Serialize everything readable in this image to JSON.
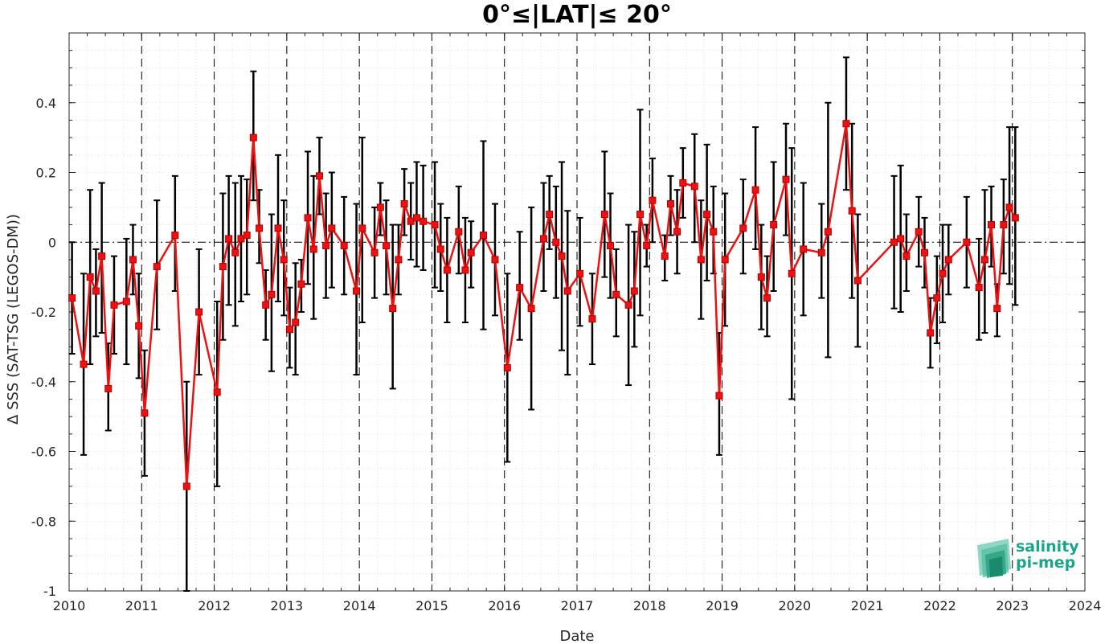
{
  "chart_data": {
    "type": "line",
    "title": "0°≤|LAT|≤ 20°",
    "xlabel": "Date",
    "ylabel": "Δ SSS (SAT-TSG (LEGOS-DM))",
    "xlim": [
      2010,
      2024
    ],
    "ylim": [
      -1,
      0.6
    ],
    "xticks": [
      "2010",
      "2011",
      "2012",
      "2013",
      "2014",
      "2015",
      "2016",
      "2017",
      "2018",
      "2019",
      "2020",
      "2021",
      "2022",
      "2023",
      "2024"
    ],
    "yticks": [
      "-1",
      "-0.8",
      "-0.6",
      "-0.4",
      "-0.2",
      "0",
      "0.2",
      "0.4"
    ],
    "grid": true,
    "series": [
      {
        "color": "#ee1111",
        "errorbar_color": "#000000",
        "points": [
          {
            "x": 2010.04,
            "y": -0.16,
            "lo": -0.32,
            "hi": 0.0
          },
          {
            "x": 2010.2,
            "y": -0.35,
            "lo": -0.61,
            "hi": -0.09
          },
          {
            "x": 2010.29,
            "y": -0.1,
            "lo": -0.35,
            "hi": 0.15
          },
          {
            "x": 2010.37,
            "y": -0.14,
            "lo": -0.27,
            "hi": -0.02
          },
          {
            "x": 2010.45,
            "y": -0.04,
            "lo": -0.26,
            "hi": 0.17
          },
          {
            "x": 2010.54,
            "y": -0.42,
            "lo": -0.54,
            "hi": -0.29
          },
          {
            "x": 2010.62,
            "y": -0.18,
            "lo": -0.32,
            "hi": -0.04
          },
          {
            "x": 2010.79,
            "y": -0.17,
            "lo": -0.35,
            "hi": 0.01
          },
          {
            "x": 2010.88,
            "y": -0.05,
            "lo": -0.15,
            "hi": 0.05
          },
          {
            "x": 2010.96,
            "y": -0.24,
            "lo": -0.39,
            "hi": -0.09
          },
          {
            "x": 2011.04,
            "y": -0.49,
            "lo": -0.67,
            "hi": -0.31
          },
          {
            "x": 2011.21,
            "y": -0.07,
            "lo": -0.25,
            "hi": 0.12
          },
          {
            "x": 2011.46,
            "y": 0.02,
            "lo": -0.14,
            "hi": 0.19
          },
          {
            "x": 2011.62,
            "y": -0.7,
            "lo": -1.0,
            "hi": -0.4
          },
          {
            "x": 2011.79,
            "y": -0.2,
            "lo": -0.38,
            "hi": -0.02
          },
          {
            "x": 2012.04,
            "y": -0.43,
            "lo": -0.7,
            "hi": -0.17
          },
          {
            "x": 2012.12,
            "y": -0.07,
            "lo": -0.28,
            "hi": 0.14
          },
          {
            "x": 2012.2,
            "y": 0.01,
            "lo": -0.18,
            "hi": 0.19
          },
          {
            "x": 2012.29,
            "y": -0.03,
            "lo": -0.24,
            "hi": 0.17
          },
          {
            "x": 2012.37,
            "y": 0.01,
            "lo": -0.17,
            "hi": 0.19
          },
          {
            "x": 2012.45,
            "y": 0.02,
            "lo": -0.15,
            "hi": 0.18
          },
          {
            "x": 2012.54,
            "y": 0.3,
            "lo": 0.12,
            "hi": 0.49
          },
          {
            "x": 2012.62,
            "y": 0.04,
            "lo": -0.06,
            "hi": 0.15
          },
          {
            "x": 2012.71,
            "y": -0.18,
            "lo": -0.28,
            "hi": -0.08
          },
          {
            "x": 2012.79,
            "y": -0.15,
            "lo": -0.37,
            "hi": 0.08
          },
          {
            "x": 2012.88,
            "y": 0.04,
            "lo": -0.17,
            "hi": 0.25
          },
          {
            "x": 2012.96,
            "y": -0.05,
            "lo": -0.21,
            "hi": 0.12
          },
          {
            "x": 2013.04,
            "y": -0.25,
            "lo": -0.36,
            "hi": -0.13
          },
          {
            "x": 2013.12,
            "y": -0.23,
            "lo": -0.38,
            "hi": -0.06
          },
          {
            "x": 2013.2,
            "y": -0.12,
            "lo": -0.2,
            "hi": -0.05
          },
          {
            "x": 2013.29,
            "y": 0.07,
            "lo": -0.12,
            "hi": 0.26
          },
          {
            "x": 2013.37,
            "y": -0.02,
            "lo": -0.22,
            "hi": 0.19
          },
          {
            "x": 2013.45,
            "y": 0.19,
            "lo": 0.08,
            "hi": 0.3
          },
          {
            "x": 2013.54,
            "y": -0.01,
            "lo": -0.16,
            "hi": 0.14
          },
          {
            "x": 2013.62,
            "y": 0.04,
            "lo": -0.13,
            "hi": 0.2
          },
          {
            "x": 2013.79,
            "y": -0.01,
            "lo": -0.15,
            "hi": 0.13
          },
          {
            "x": 2013.96,
            "y": -0.14,
            "lo": -0.38,
            "hi": 0.11
          },
          {
            "x": 2014.04,
            "y": 0.04,
            "lo": -0.23,
            "hi": 0.3
          },
          {
            "x": 2014.21,
            "y": -0.03,
            "lo": -0.16,
            "hi": 0.1
          },
          {
            "x": 2014.29,
            "y": 0.1,
            "lo": 0.02,
            "hi": 0.17
          },
          {
            "x": 2014.37,
            "y": -0.01,
            "lo": -0.15,
            "hi": 0.12
          },
          {
            "x": 2014.46,
            "y": -0.19,
            "lo": -0.42,
            "hi": 0.05
          },
          {
            "x": 2014.54,
            "y": -0.05,
            "lo": -0.15,
            "hi": 0.05
          },
          {
            "x": 2014.62,
            "y": 0.11,
            "lo": 0.02,
            "hi": 0.21
          },
          {
            "x": 2014.71,
            "y": 0.06,
            "lo": -0.05,
            "hi": 0.17
          },
          {
            "x": 2014.79,
            "y": 0.07,
            "lo": -0.07,
            "hi": 0.23
          },
          {
            "x": 2014.88,
            "y": 0.06,
            "lo": -0.08,
            "hi": 0.22
          },
          {
            "x": 2015.04,
            "y": 0.05,
            "lo": -0.13,
            "hi": 0.23
          },
          {
            "x": 2015.12,
            "y": -0.02,
            "lo": -0.14,
            "hi": 0.11
          },
          {
            "x": 2015.21,
            "y": -0.08,
            "lo": -0.23,
            "hi": 0.07
          },
          {
            "x": 2015.37,
            "y": 0.03,
            "lo": -0.09,
            "hi": 0.16
          },
          {
            "x": 2015.46,
            "y": -0.08,
            "lo": -0.23,
            "hi": 0.07
          },
          {
            "x": 2015.54,
            "y": -0.03,
            "lo": -0.13,
            "hi": 0.06
          },
          {
            "x": 2015.71,
            "y": 0.02,
            "lo": -0.25,
            "hi": 0.29
          },
          {
            "x": 2015.87,
            "y": -0.05,
            "lo": -0.21,
            "hi": 0.11
          },
          {
            "x": 2016.04,
            "y": -0.36,
            "lo": -0.63,
            "hi": -0.09
          },
          {
            "x": 2016.21,
            "y": -0.13,
            "lo": -0.28,
            "hi": 0.03
          },
          {
            "x": 2016.37,
            "y": -0.19,
            "lo": -0.48,
            "hi": 0.1
          },
          {
            "x": 2016.54,
            "y": 0.01,
            "lo": -0.14,
            "hi": 0.17
          },
          {
            "x": 2016.62,
            "y": 0.08,
            "lo": -0.02,
            "hi": 0.19
          },
          {
            "x": 2016.71,
            "y": 0.0,
            "lo": -0.16,
            "hi": 0.16
          },
          {
            "x": 2016.79,
            "y": -0.04,
            "lo": -0.31,
            "hi": 0.23
          },
          {
            "x": 2016.87,
            "y": -0.14,
            "lo": -0.38,
            "hi": 0.09
          },
          {
            "x": 2017.04,
            "y": -0.09,
            "lo": -0.24,
            "hi": 0.07
          },
          {
            "x": 2017.21,
            "y": -0.22,
            "lo": -0.35,
            "hi": -0.09
          },
          {
            "x": 2017.38,
            "y": 0.08,
            "lo": -0.1,
            "hi": 0.26
          },
          {
            "x": 2017.46,
            "y": -0.01,
            "lo": -0.16,
            "hi": 0.14
          },
          {
            "x": 2017.54,
            "y": -0.15,
            "lo": -0.27,
            "hi": -0.02
          },
          {
            "x": 2017.71,
            "y": -0.18,
            "lo": -0.41,
            "hi": 0.05
          },
          {
            "x": 2017.79,
            "y": -0.14,
            "lo": -0.3,
            "hi": 0.03
          },
          {
            "x": 2017.87,
            "y": 0.08,
            "lo": -0.21,
            "hi": 0.38
          },
          {
            "x": 2017.96,
            "y": -0.01,
            "lo": -0.07,
            "hi": 0.05
          },
          {
            "x": 2018.04,
            "y": 0.12,
            "lo": 0.0,
            "hi": 0.24
          },
          {
            "x": 2018.21,
            "y": -0.04,
            "lo": -0.11,
            "hi": 0.02
          },
          {
            "x": 2018.29,
            "y": 0.11,
            "lo": 0.02,
            "hi": 0.19
          },
          {
            "x": 2018.38,
            "y": 0.03,
            "lo": -0.09,
            "hi": 0.15
          },
          {
            "x": 2018.46,
            "y": 0.17,
            "lo": 0.07,
            "hi": 0.27
          },
          {
            "x": 2018.62,
            "y": 0.16,
            "lo": 0.0,
            "hi": 0.31
          },
          {
            "x": 2018.71,
            "y": -0.05,
            "lo": -0.22,
            "hi": 0.12
          },
          {
            "x": 2018.79,
            "y": 0.08,
            "lo": -0.11,
            "hi": 0.28
          },
          {
            "x": 2018.88,
            "y": 0.03,
            "lo": -0.09,
            "hi": 0.16
          },
          {
            "x": 2018.96,
            "y": -0.44,
            "lo": -0.61,
            "hi": -0.26
          },
          {
            "x": 2019.04,
            "y": -0.05,
            "lo": -0.24,
            "hi": 0.14
          },
          {
            "x": 2019.29,
            "y": 0.04,
            "lo": -0.09,
            "hi": 0.18
          },
          {
            "x": 2019.46,
            "y": 0.15,
            "lo": -0.02,
            "hi": 0.33
          },
          {
            "x": 2019.54,
            "y": -0.1,
            "lo": -0.25,
            "hi": 0.05
          },
          {
            "x": 2019.62,
            "y": -0.16,
            "lo": -0.27,
            "hi": -0.04
          },
          {
            "x": 2019.71,
            "y": 0.05,
            "lo": -0.14,
            "hi": 0.23
          },
          {
            "x": 2019.88,
            "y": 0.18,
            "lo": 0.02,
            "hi": 0.34
          },
          {
            "x": 2019.96,
            "y": -0.09,
            "lo": -0.45,
            "hi": 0.27
          },
          {
            "x": 2020.12,
            "y": -0.02,
            "lo": -0.21,
            "hi": 0.17
          },
          {
            "x": 2020.37,
            "y": -0.03,
            "lo": -0.16,
            "hi": 0.11
          },
          {
            "x": 2020.46,
            "y": 0.03,
            "lo": -0.33,
            "hi": 0.4
          },
          {
            "x": 2020.71,
            "y": 0.34,
            "lo": 0.15,
            "hi": 0.53
          },
          {
            "x": 2020.79,
            "y": 0.09,
            "lo": -0.16,
            "hi": 0.34
          },
          {
            "x": 2020.87,
            "y": -0.11,
            "lo": -0.3,
            "hi": 0.08
          },
          {
            "x": 2021.37,
            "y": 0.0,
            "lo": -0.19,
            "hi": 0.19
          },
          {
            "x": 2021.46,
            "y": 0.01,
            "lo": -0.2,
            "hi": 0.22
          },
          {
            "x": 2021.54,
            "y": -0.04,
            "lo": -0.14,
            "hi": 0.08
          },
          {
            "x": 2021.71,
            "y": 0.03,
            "lo": -0.07,
            "hi": 0.13
          },
          {
            "x": 2021.79,
            "y": -0.03,
            "lo": -0.13,
            "hi": 0.07
          },
          {
            "x": 2021.87,
            "y": -0.26,
            "lo": -0.36,
            "hi": -0.16
          },
          {
            "x": 2021.96,
            "y": -0.16,
            "lo": -0.29,
            "hi": -0.04
          },
          {
            "x": 2022.04,
            "y": -0.09,
            "lo": -0.23,
            "hi": 0.05
          },
          {
            "x": 2022.12,
            "y": -0.05,
            "lo": -0.15,
            "hi": 0.05
          },
          {
            "x": 2022.37,
            "y": 0.0,
            "lo": -0.13,
            "hi": 0.13
          },
          {
            "x": 2022.54,
            "y": -0.13,
            "lo": -0.28,
            "hi": 0.01
          },
          {
            "x": 2022.62,
            "y": -0.05,
            "lo": -0.26,
            "hi": 0.15
          },
          {
            "x": 2022.71,
            "y": 0.05,
            "lo": -0.07,
            "hi": 0.16
          },
          {
            "x": 2022.79,
            "y": -0.19,
            "lo": -0.27,
            "hi": -0.12
          },
          {
            "x": 2022.88,
            "y": 0.05,
            "lo": -0.09,
            "hi": 0.18
          },
          {
            "x": 2022.96,
            "y": 0.1,
            "lo": -0.12,
            "hi": 0.33
          },
          {
            "x": 2023.04,
            "y": 0.07,
            "lo": -0.18,
            "hi": 0.33
          }
        ]
      }
    ]
  },
  "logo": {
    "line1": "salinity",
    "line2": "pi-mep"
  },
  "colors": {
    "line": "#ee1111",
    "marker_fill": "#ee1111",
    "marker_edge": "#b00000",
    "errorbar": "#000000",
    "grid": "#d6d6d6",
    "logo_text": "#1aa58a"
  }
}
